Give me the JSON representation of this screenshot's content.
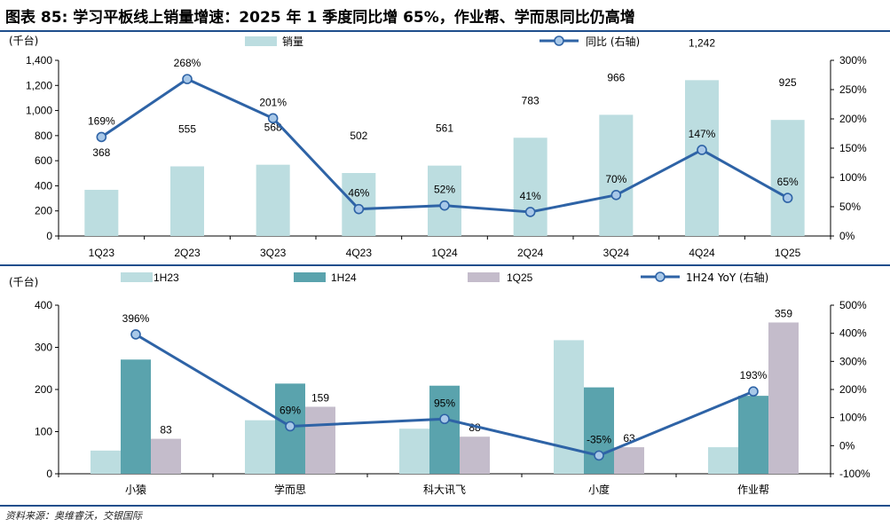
{
  "title": "图表 85: 学习平板线上销量增速：2025 年 1 季度同比增 65%，作业帮、学而思同比仍高增",
  "source": "资料来源：奥维睿沃，交银国际",
  "colors": {
    "rule": "#1f4e8c",
    "line": "#2e63a6",
    "marker_fill": "#a8c8e8",
    "bar_light": "#bcdde0",
    "bar_teal": "#5aa3ad",
    "bar_mauve": "#c4bccb"
  },
  "chart_data": [
    {
      "type": "bar",
      "unit_label": "(千台)",
      "categories": [
        "1Q23",
        "2Q23",
        "3Q23",
        "4Q23",
        "1Q24",
        "2Q24",
        "3Q24",
        "4Q24",
        "1Q25"
      ],
      "series": [
        {
          "name": "销量",
          "kind": "bar",
          "axis": "left",
          "values": [
            368,
            555,
            568,
            502,
            561,
            783,
            966,
            1242,
            925
          ],
          "labels": [
            "368",
            "555",
            "568",
            "502",
            "561",
            "783",
            "966",
            "1,242",
            "925"
          ]
        },
        {
          "name": "同比 (右轴)",
          "kind": "line",
          "axis": "right",
          "values": [
            169,
            268,
            201,
            46,
            52,
            41,
            70,
            147,
            65
          ],
          "labels": [
            "169%",
            "268%",
            "201%",
            "46%",
            "52%",
            "41%",
            "70%",
            "147%",
            "65%"
          ]
        }
      ],
      "ylim": [
        0,
        1400
      ],
      "yticks": [
        0,
        200,
        400,
        600,
        800,
        1000,
        1200,
        1400
      ],
      "ytick_labels": [
        "0",
        "200",
        "400",
        "600",
        "800",
        "1,000",
        "1,200",
        "1,400"
      ],
      "y2lim": [
        0,
        300
      ],
      "y2ticks": [
        0,
        50,
        100,
        150,
        200,
        250,
        300
      ],
      "y2tick_labels": [
        "0%",
        "50%",
        "100%",
        "150%",
        "200%",
        "250%",
        "300%"
      ],
      "legend": "top",
      "grid": false
    },
    {
      "type": "bar",
      "unit_label": "(千台)",
      "categories": [
        "小猿",
        "学而思",
        "科大讯飞",
        "小度",
        "作业帮"
      ],
      "series": [
        {
          "name": "1H23",
          "kind": "bar",
          "axis": "left",
          "values": [
            55,
            127,
            107,
            317,
            63
          ]
        },
        {
          "name": "1H24",
          "kind": "bar",
          "axis": "left",
          "values": [
            271,
            214,
            209,
            205,
            185
          ]
        },
        {
          "name": "1Q25",
          "kind": "bar",
          "axis": "left",
          "values": [
            83,
            159,
            88,
            63,
            359
          ],
          "labels": [
            "83",
            "159",
            "88",
            "63",
            "359"
          ]
        },
        {
          "name": "1H24 YoY (右轴)",
          "kind": "line",
          "axis": "right",
          "values": [
            396,
            69,
            95,
            -35,
            193
          ],
          "labels": [
            "396%",
            "69%",
            "95%",
            "-35%",
            "193%"
          ]
        }
      ],
      "ylim": [
        0,
        400
      ],
      "yticks": [
        0,
        100,
        200,
        300,
        400
      ],
      "ytick_labels": [
        "0",
        "100",
        "200",
        "300",
        "400"
      ],
      "y2lim": [
        -100,
        500
      ],
      "y2ticks": [
        -100,
        0,
        100,
        200,
        300,
        400,
        500
      ],
      "y2tick_labels": [
        "-100%",
        "0%",
        "100%",
        "200%",
        "300%",
        "400%",
        "500%"
      ],
      "legend": "top",
      "grid": false
    }
  ]
}
